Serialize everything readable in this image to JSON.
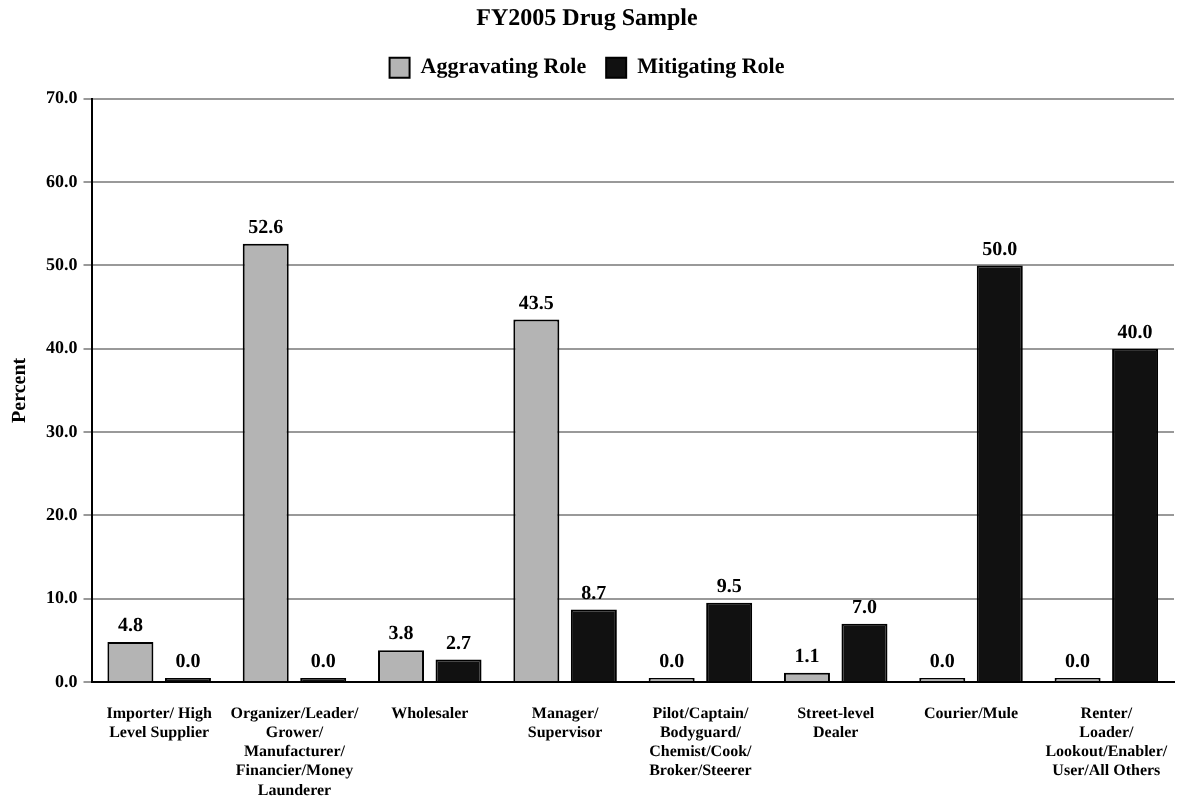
{
  "chart_data": {
    "type": "bar",
    "title": "FY2005 Drug Sample",
    "ylabel": "Percent",
    "categories": [
      "Importer/ High\nLevel Supplier",
      "Organizer/Leader/\nGrower/\nManufacturer/\nFinancier/Money\nLaunderer",
      "Wholesaler",
      "Manager/\nSupervisor",
      "Pilot/Captain/\nBodyguard/\nChemist/Cook/\nBroker/Steerer",
      "Street-level\nDealer",
      "Courier/Mule",
      "Renter/\nLoader/\nLookout/Enabler/\nUser/All Others"
    ],
    "series": [
      {
        "name": "Aggravating Role",
        "color": "#b4b4b4",
        "values": [
          4.8,
          52.6,
          3.8,
          43.5,
          0.0,
          1.1,
          0.0,
          0.0
        ],
        "value_labels": [
          "4.8",
          "52.6",
          "3.8",
          "43.5",
          "0.0",
          "1.1",
          "0.0",
          "0.0"
        ]
      },
      {
        "name": "Mitigating Role",
        "color": "#111111",
        "values": [
          0.0,
          0.0,
          2.7,
          8.7,
          9.5,
          7.0,
          50.0,
          40.0
        ],
        "value_labels": [
          "0.0",
          "0.0",
          "2.7",
          "8.7",
          "9.5",
          "7.0",
          "50.0",
          "40.0"
        ]
      }
    ],
    "ylim": [
      0,
      70
    ],
    "yticks": [
      {
        "value": 0,
        "label": "0.0"
      },
      {
        "value": 10,
        "label": "10.0"
      },
      {
        "value": 20,
        "label": "20.0"
      },
      {
        "value": 30,
        "label": "30.0"
      },
      {
        "value": 40,
        "label": "40.0"
      },
      {
        "value": 50,
        "label": "50.0"
      },
      {
        "value": 60,
        "label": "60.0"
      },
      {
        "value": 70,
        "label": "70.0"
      }
    ],
    "grid": "y",
    "legend": "top"
  }
}
